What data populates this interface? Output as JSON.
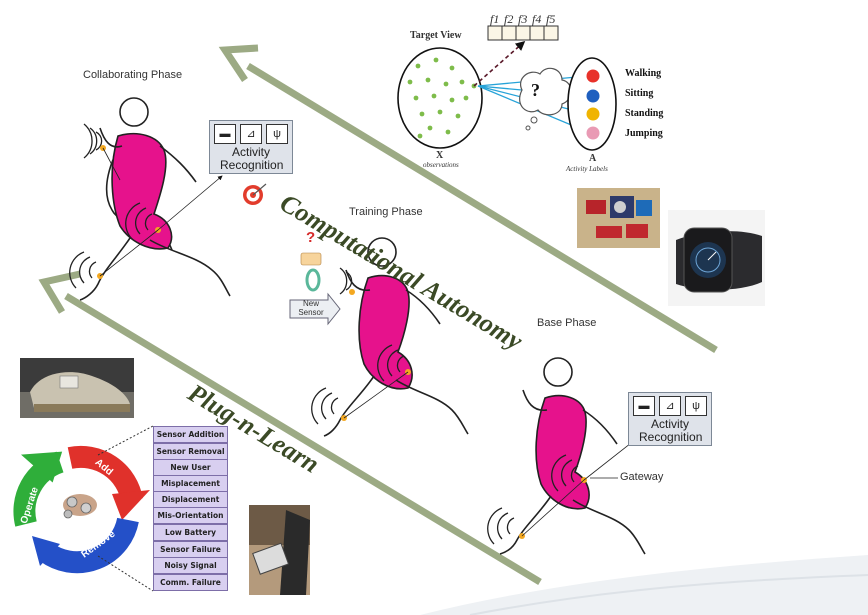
{
  "phases": {
    "collaborating": "Collaborating Phase",
    "training": "Training Phase",
    "base": "Base Phase"
  },
  "activity_recognition": "Activity Recognition",
  "new_sensor": "New Sensor",
  "gateway": "Gateway",
  "target_view": {
    "title": "Target View",
    "x_label": "X",
    "x_sub": "observations",
    "a_label": "A",
    "a_sub": "Activity Labels",
    "question": "?",
    "features": [
      "f1",
      "f2",
      "f3",
      "f4",
      "f5"
    ]
  },
  "activities": [
    {
      "label": "Walking",
      "color": "#e8312a"
    },
    {
      "label": "Sitting",
      "color": "#1f5fbf"
    },
    {
      "label": "Standing",
      "color": "#f0b400"
    },
    {
      "label": "Jumping",
      "color": "#e99ab4"
    }
  ],
  "computational_autonomy": "Computational Autonomy",
  "plug_n_learn": "Plug-n-Learn",
  "cycle": {
    "add": "Add",
    "operate": "Operate",
    "remove": "Remove"
  },
  "events": [
    "Sensor Addition",
    "Sensor Removal",
    "New User",
    "Misplacement",
    "Displacement",
    "Mis-Orientation",
    "Low Battery",
    "Sensor Failure",
    "Noisy Signal",
    "Comm. Failure"
  ],
  "question_mark": "?",
  "colors": {
    "body": "#e6128c",
    "arrow": "#9caa84",
    "chip": "#d8cff0",
    "green": "#2fae3a"
  }
}
